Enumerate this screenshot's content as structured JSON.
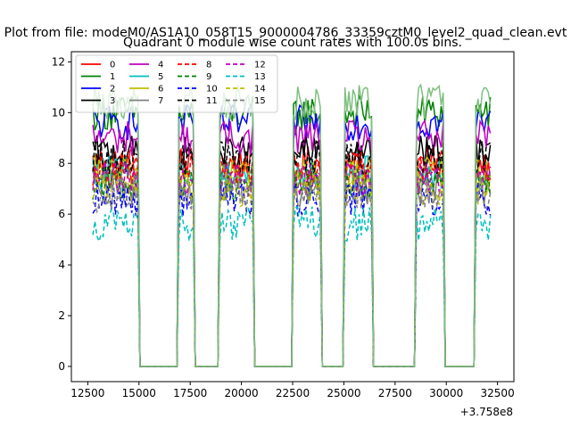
{
  "chart_data": {
    "type": "line",
    "suptitle": "Plot from file: modeM0/AS1A10_058T15_9000004786_33359cztM0_level2_quad_clean.evt",
    "title": "Quadrant 0 module wise count rates with 100.0s bins.",
    "xlabel": "",
    "ylabel": "",
    "x_offset_label": "+3.758e8",
    "xlim": [
      11700,
      33300
    ],
    "ylim": [
      -0.6,
      12.4
    ],
    "xticks": [
      12500,
      15000,
      17500,
      20000,
      22500,
      25000,
      27500,
      30000,
      32500
    ],
    "xtick_labels": [
      "12500",
      "15000",
      "17500",
      "20000",
      "22500",
      "25000",
      "27500",
      "30000",
      "32500"
    ],
    "yticks": [
      0,
      2,
      4,
      6,
      8,
      10,
      12
    ],
    "ytick_labels": [
      "0",
      "2",
      "4",
      "6",
      "8",
      "10",
      "12"
    ],
    "legend_position": "top-left",
    "bin_size_s": 100,
    "active_intervals": [
      [
        12750,
        14950
      ],
      [
        16900,
        17650
      ],
      [
        18900,
        20550
      ],
      [
        22500,
        23900
      ],
      [
        25000,
        26400
      ],
      [
        28500,
        29900
      ],
      [
        31400,
        32200
      ]
    ],
    "series": [
      {
        "name": "0",
        "color": "#ff0000",
        "dash": "solid",
        "level": 8.0
      },
      {
        "name": "1",
        "color": "#008000",
        "dash": "solid",
        "level": 10.0
      },
      {
        "name": "2",
        "color": "#0000ff",
        "dash": "solid",
        "level": 9.6
      },
      {
        "name": "3",
        "color": "#000000",
        "dash": "solid",
        "level": 8.4
      },
      {
        "name": "4",
        "color": "#bf00bf",
        "dash": "solid",
        "level": 9.0
      },
      {
        "name": "5",
        "color": "#00bfbf",
        "dash": "solid",
        "level": 7.6
      },
      {
        "name": "6",
        "color": "#bfbf00",
        "dash": "solid",
        "level": 7.6
      },
      {
        "name": "7",
        "color": "#808080",
        "dash": "solid",
        "level": 7.0
      },
      {
        "name": "8",
        "color": "#ff0000",
        "dash": "dashed",
        "level": 7.8
      },
      {
        "name": "9",
        "color": "#008000",
        "dash": "dashed",
        "level": 7.2
      },
      {
        "name": "10",
        "color": "#0000ff",
        "dash": "dashed",
        "level": 6.6
      },
      {
        "name": "11",
        "color": "#000000",
        "dash": "dashed",
        "level": 8.2
      },
      {
        "name": "12",
        "color": "#bf00bf",
        "dash": "dashed",
        "level": 7.4
      },
      {
        "name": "13",
        "color": "#00bfbf",
        "dash": "dashed",
        "level": 5.6
      },
      {
        "name": "14",
        "color": "#bfbf00",
        "dash": "dashed",
        "level": 7.0
      },
      {
        "name": "15",
        "color": "#808080",
        "dash": "dashed",
        "level": 6.8
      },
      {
        "name": "",
        "color": "#7fbf7f",
        "dash": "solid",
        "level": 10.4
      }
    ]
  }
}
